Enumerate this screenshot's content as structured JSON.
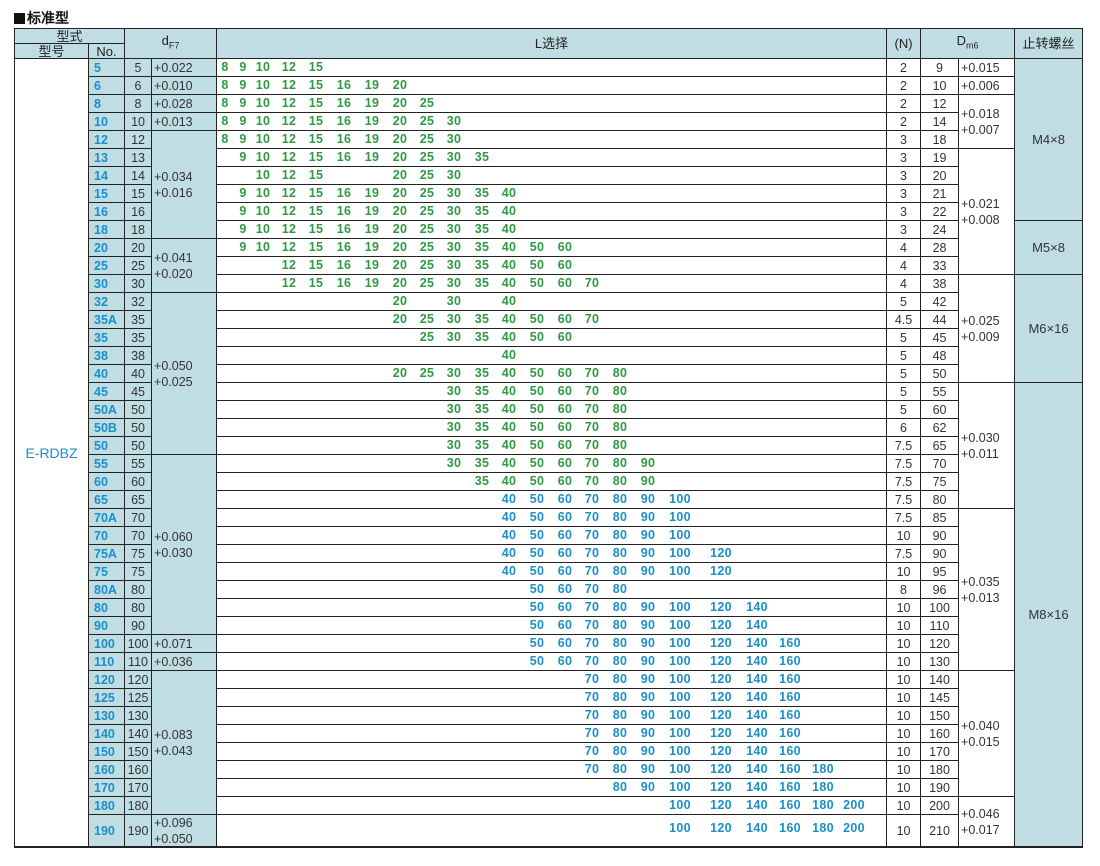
{
  "section_title": "标准型",
  "headers": {
    "form": "型式",
    "model": "型号",
    "no": "No.",
    "d_sub": "F7",
    "L": "L选择",
    "N": "(N)",
    "D_sub": "m6",
    "screw": "止转螺丝"
  },
  "type_name": "E-RDBZ",
  "L_columns": [
    "8",
    "9",
    "10",
    "12",
    "15",
    "16",
    "19",
    "20",
    "25",
    "30",
    "35",
    "40",
    "50",
    "60",
    "70",
    "80",
    "90",
    "100",
    "120",
    "140",
    "160",
    "180",
    "200"
  ],
  "colors": {
    "header_bg": "#c0dde4",
    "green": "#2f9a43",
    "blue": "#1a8fc9"
  },
  "rows": [
    {
      "model": "5",
      "no": "5",
      "N": "2",
      "D": "9",
      "color": "green",
      "L": [
        "8",
        "9",
        "10",
        "12",
        "15"
      ]
    },
    {
      "model": "6",
      "no": "6",
      "N": "2",
      "D": "10",
      "color": "green",
      "L": [
        "8",
        "9",
        "10",
        "12",
        "15",
        "16",
        "19",
        "20"
      ]
    },
    {
      "model": "8",
      "no": "8",
      "N": "2",
      "D": "12",
      "color": "green",
      "L": [
        "8",
        "9",
        "10",
        "12",
        "15",
        "16",
        "19",
        "20",
        "25"
      ]
    },
    {
      "model": "10",
      "no": "10",
      "N": "2",
      "D": "14",
      "color": "green",
      "L": [
        "8",
        "9",
        "10",
        "12",
        "15",
        "16",
        "19",
        "20",
        "25",
        "30"
      ]
    },
    {
      "model": "12",
      "no": "12",
      "N": "3",
      "D": "18",
      "color": "green",
      "L": [
        "8",
        "9",
        "10",
        "12",
        "15",
        "16",
        "19",
        "20",
        "25",
        "30"
      ]
    },
    {
      "model": "13",
      "no": "13",
      "N": "3",
      "D": "19",
      "color": "green",
      "L": [
        "9",
        "10",
        "12",
        "15",
        "16",
        "19",
        "20",
        "25",
        "30",
        "35"
      ]
    },
    {
      "model": "14",
      "no": "14",
      "N": "3",
      "D": "20",
      "color": "green",
      "L": [
        "10",
        "12",
        "15",
        "20",
        "25",
        "30"
      ]
    },
    {
      "model": "15",
      "no": "15",
      "N": "3",
      "D": "21",
      "color": "green",
      "L": [
        "9",
        "10",
        "12",
        "15",
        "16",
        "19",
        "20",
        "25",
        "30",
        "35",
        "40"
      ]
    },
    {
      "model": "16",
      "no": "16",
      "N": "3",
      "D": "22",
      "color": "green",
      "L": [
        "9",
        "10",
        "12",
        "15",
        "16",
        "19",
        "20",
        "25",
        "30",
        "35",
        "40"
      ]
    },
    {
      "model": "18",
      "no": "18",
      "N": "3",
      "D": "24",
      "color": "green",
      "L": [
        "9",
        "10",
        "12",
        "15",
        "16",
        "19",
        "20",
        "25",
        "30",
        "35",
        "40"
      ]
    },
    {
      "model": "20",
      "no": "20",
      "N": "4",
      "D": "28",
      "color": "green",
      "L": [
        "9",
        "10",
        "12",
        "15",
        "16",
        "19",
        "20",
        "25",
        "30",
        "35",
        "40",
        "50",
        "60"
      ]
    },
    {
      "model": "25",
      "no": "25",
      "N": "4",
      "D": "33",
      "color": "green",
      "L": [
        "12",
        "15",
        "16",
        "19",
        "20",
        "25",
        "30",
        "35",
        "40",
        "50",
        "60"
      ]
    },
    {
      "model": "30",
      "no": "30",
      "N": "4",
      "D": "38",
      "color": "green",
      "L": [
        "12",
        "15",
        "16",
        "19",
        "20",
        "25",
        "30",
        "35",
        "40",
        "50",
        "60",
        "70"
      ]
    },
    {
      "model": "32",
      "no": "32",
      "N": "5",
      "D": "42",
      "color": "green",
      "L": [
        "20",
        "30",
        "40"
      ]
    },
    {
      "model": "35A",
      "no": "35",
      "N": "4.5",
      "D": "44",
      "color": "green",
      "L": [
        "20",
        "25",
        "30",
        "35",
        "40",
        "50",
        "60",
        "70"
      ]
    },
    {
      "model": "35",
      "no": "35",
      "N": "5",
      "D": "45",
      "color": "green",
      "L": [
        "25",
        "30",
        "35",
        "40",
        "50",
        "60"
      ]
    },
    {
      "model": "38",
      "no": "38",
      "N": "5",
      "D": "48",
      "color": "green",
      "L": [
        "40"
      ]
    },
    {
      "model": "40",
      "no": "40",
      "N": "5",
      "D": "50",
      "color": "green",
      "L": [
        "20",
        "25",
        "30",
        "35",
        "40",
        "50",
        "60",
        "70",
        "80"
      ]
    },
    {
      "model": "45",
      "no": "45",
      "N": "5",
      "D": "55",
      "color": "green",
      "L": [
        "30",
        "35",
        "40",
        "50",
        "60",
        "70",
        "80"
      ]
    },
    {
      "model": "50A",
      "no": "50",
      "N": "5",
      "D": "60",
      "color": "green",
      "L": [
        "30",
        "35",
        "40",
        "50",
        "60",
        "70",
        "80"
      ]
    },
    {
      "model": "50B",
      "no": "50",
      "N": "6",
      "D": "62",
      "color": "green",
      "L": [
        "30",
        "35",
        "40",
        "50",
        "60",
        "70",
        "80"
      ]
    },
    {
      "model": "50",
      "no": "50",
      "N": "7.5",
      "D": "65",
      "color": "green",
      "L": [
        "30",
        "35",
        "40",
        "50",
        "60",
        "70",
        "80"
      ]
    },
    {
      "model": "55",
      "no": "55",
      "N": "7.5",
      "D": "70",
      "color": "green",
      "L": [
        "30",
        "35",
        "40",
        "50",
        "60",
        "70",
        "80",
        "90"
      ]
    },
    {
      "model": "60",
      "no": "60",
      "N": "7.5",
      "D": "75",
      "color": "green",
      "L": [
        "35",
        "40",
        "50",
        "60",
        "70",
        "80",
        "90"
      ]
    },
    {
      "model": "65",
      "no": "65",
      "N": "7.5",
      "D": "80",
      "color": "blue",
      "L": [
        "40",
        "50",
        "60",
        "70",
        "80",
        "90",
        "100"
      ]
    },
    {
      "model": "70A",
      "no": "70",
      "N": "7.5",
      "D": "85",
      "color": "blue",
      "L": [
        "40",
        "50",
        "60",
        "70",
        "80",
        "90",
        "100"
      ]
    },
    {
      "model": "70",
      "no": "70",
      "N": "10",
      "D": "90",
      "color": "blue",
      "L": [
        "40",
        "50",
        "60",
        "70",
        "80",
        "90",
        "100"
      ]
    },
    {
      "model": "75A",
      "no": "75",
      "N": "7.5",
      "D": "90",
      "color": "blue",
      "L": [
        "40",
        "50",
        "60",
        "70",
        "80",
        "90",
        "100",
        "120"
      ]
    },
    {
      "model": "75",
      "no": "75",
      "N": "10",
      "D": "95",
      "color": "blue",
      "L": [
        "40",
        "50",
        "60",
        "70",
        "80",
        "90",
        "100",
        "120"
      ]
    },
    {
      "model": "80A",
      "no": "80",
      "N": "8",
      "D": "96",
      "color": "blue",
      "L": [
        "50",
        "60",
        "70",
        "80"
      ]
    },
    {
      "model": "80",
      "no": "80",
      "N": "10",
      "D": "100",
      "color": "blue",
      "L": [
        "50",
        "60",
        "70",
        "80",
        "90",
        "100",
        "120",
        "140"
      ]
    },
    {
      "model": "90",
      "no": "90",
      "N": "10",
      "D": "110",
      "color": "blue",
      "L": [
        "50",
        "60",
        "70",
        "80",
        "90",
        "100",
        "120",
        "140"
      ]
    },
    {
      "model": "100",
      "no": "100",
      "N": "10",
      "D": "120",
      "color": "blue",
      "L": [
        "50",
        "60",
        "70",
        "80",
        "90",
        "100",
        "120",
        "140",
        "160"
      ]
    },
    {
      "model": "110",
      "no": "110",
      "N": "10",
      "D": "130",
      "color": "blue",
      "L": [
        "50",
        "60",
        "70",
        "80",
        "90",
        "100",
        "120",
        "140",
        "160"
      ]
    },
    {
      "model": "120",
      "no": "120",
      "N": "10",
      "D": "140",
      "color": "blue",
      "L": [
        "70",
        "80",
        "90",
        "100",
        "120",
        "140",
        "160"
      ]
    },
    {
      "model": "125",
      "no": "125",
      "N": "10",
      "D": "145",
      "color": "blue",
      "L": [
        "70",
        "80",
        "90",
        "100",
        "120",
        "140",
        "160"
      ]
    },
    {
      "model": "130",
      "no": "130",
      "N": "10",
      "D": "150",
      "color": "blue",
      "L": [
        "70",
        "80",
        "90",
        "100",
        "120",
        "140",
        "160"
      ]
    },
    {
      "model": "140",
      "no": "140",
      "N": "10",
      "D": "160",
      "color": "blue",
      "L": [
        "70",
        "80",
        "90",
        "100",
        "120",
        "140",
        "160"
      ]
    },
    {
      "model": "150",
      "no": "150",
      "N": "10",
      "D": "170",
      "color": "blue",
      "L": [
        "70",
        "80",
        "90",
        "100",
        "120",
        "140",
        "160"
      ]
    },
    {
      "model": "160",
      "no": "160",
      "N": "10",
      "D": "180",
      "color": "blue",
      "L": [
        "70",
        "80",
        "90",
        "100",
        "120",
        "140",
        "160",
        "180"
      ]
    },
    {
      "model": "170",
      "no": "170",
      "N": "10",
      "D": "190",
      "color": "blue",
      "L": [
        "80",
        "90",
        "100",
        "120",
        "140",
        "160",
        "180"
      ]
    },
    {
      "model": "180",
      "no": "180",
      "N": "10",
      "D": "200",
      "color": "blue",
      "L": [
        "100",
        "120",
        "140",
        "160",
        "180",
        "200"
      ]
    },
    {
      "model": "190",
      "no": "190",
      "N": "10",
      "D": "210",
      "color": "blue",
      "L": [
        "100",
        "120",
        "140",
        "160",
        "180",
        "200"
      ],
      "tall": true
    }
  ],
  "d_tolerances": [
    {
      "start": 0,
      "span": 1,
      "upper": "+0.022",
      "lower": ""
    },
    {
      "start": 1,
      "span": 1,
      "upper": "+0.010",
      "lower": ""
    },
    {
      "start": 2,
      "span": 1,
      "upper": "+0.028",
      "lower": ""
    },
    {
      "start": 3,
      "span": 1,
      "upper": "+0.013",
      "lower": ""
    },
    {
      "start": 4,
      "span": 6,
      "upper": "+0.034",
      "lower": "+0.016"
    },
    {
      "start": 10,
      "span": 3,
      "upper": "+0.041",
      "lower": "+0.020"
    },
    {
      "start": 13,
      "span": 9,
      "upper": "+0.050",
      "lower": "+0.025"
    },
    {
      "start": 22,
      "span": 10,
      "upper": "+0.060",
      "lower": "+0.030"
    },
    {
      "start": 32,
      "span": 1,
      "upper": "+0.071",
      "lower": ""
    },
    {
      "start": 33,
      "span": 1,
      "upper": "+0.036",
      "lower": ""
    },
    {
      "start": 34,
      "span": 8,
      "upper": "+0.083",
      "lower": "+0.043"
    },
    {
      "start": 42,
      "span": 1,
      "upper": "+0.096",
      "lower": "+0.050"
    }
  ],
  "D_tolerances": [
    {
      "start": 0,
      "span": 1,
      "upper": "+0.015",
      "lower": ""
    },
    {
      "start": 1,
      "span": 1,
      "upper": "+0.006",
      "lower": ""
    },
    {
      "start": 2,
      "span": 3,
      "upper": "+0.018",
      "lower": "+0.007"
    },
    {
      "start": 5,
      "span": 7,
      "upper": "+0.021",
      "lower": "+0.008"
    },
    {
      "start": 12,
      "span": 6,
      "upper": "+0.025",
      "lower": "+0.009"
    },
    {
      "start": 18,
      "span": 7,
      "upper": "+0.030",
      "lower": "+0.011"
    },
    {
      "start": 25,
      "span": 9,
      "upper": "+0.035",
      "lower": "+0.013"
    },
    {
      "start": 34,
      "span": 7,
      "upper": "+0.040",
      "lower": "+0.015"
    },
    {
      "start": 41,
      "span": 2,
      "upper": "+0.046",
      "lower": "+0.017"
    }
  ],
  "screws": [
    {
      "start": 0,
      "span": 9,
      "label": "M4×8"
    },
    {
      "start": 9,
      "span": 3,
      "label": "M5×8"
    },
    {
      "start": 12,
      "span": 6,
      "label": "M6×16"
    },
    {
      "start": 18,
      "span": 25,
      "label": "M8×16"
    }
  ]
}
